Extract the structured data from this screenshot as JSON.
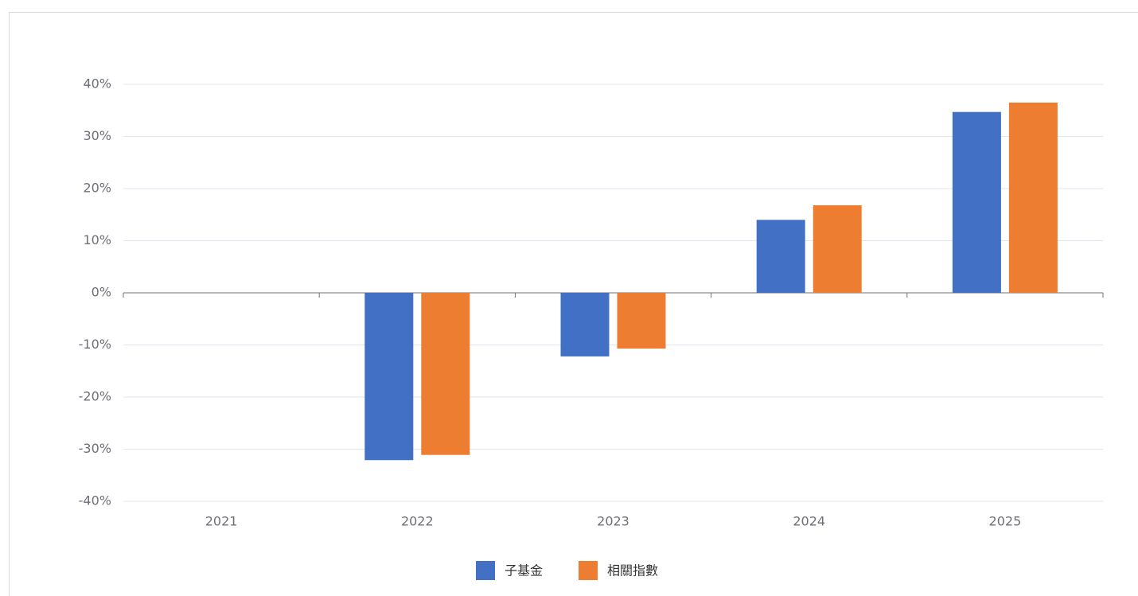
{
  "chart_data": {
    "type": "bar",
    "categories": [
      "2021",
      "2022",
      "2023",
      "2024",
      "2025"
    ],
    "series": [
      {
        "name": "子基金",
        "color": "#4270c4",
        "values": [
          null,
          -32.1,
          -12.2,
          14.0,
          34.7
        ]
      },
      {
        "name": "相關指數",
        "color": "#ed7d31",
        "values": [
          null,
          -31.1,
          -10.7,
          16.8,
          36.5
        ]
      }
    ],
    "ylim": [
      -40,
      40
    ],
    "yticks": [
      {
        "value": -40,
        "label": "-40%"
      },
      {
        "value": -30,
        "label": "-30%"
      },
      {
        "value": -20,
        "label": "-20%"
      },
      {
        "value": -10,
        "label": "-10%"
      },
      {
        "value": 0,
        "label": "0%"
      },
      {
        "value": 10,
        "label": "10%"
      },
      {
        "value": 20,
        "label": "20%"
      },
      {
        "value": 30,
        "label": "30%"
      },
      {
        "value": 40,
        "label": "40%"
      }
    ],
    "grid": true,
    "legend": "bottom"
  }
}
